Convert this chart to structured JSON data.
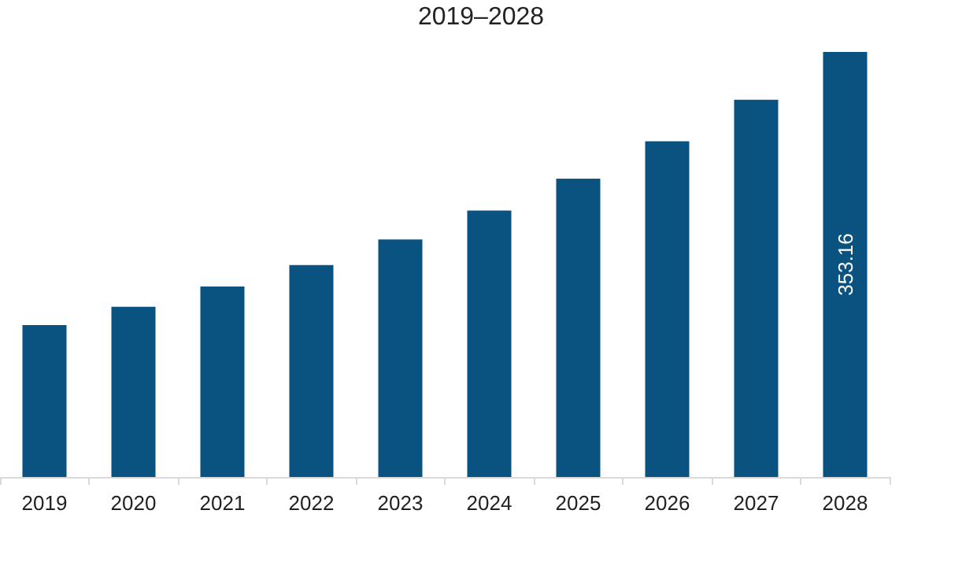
{
  "chart_data": {
    "type": "bar",
    "title": "2019–2028",
    "categories": [
      "2019",
      "2020",
      "2021",
      "2022",
      "2023",
      "2024",
      "2025",
      "2026",
      "2027",
      "2028"
    ],
    "values": [
      126.2,
      141.5,
      158.3,
      176.1,
      197.4,
      221.4,
      247.8,
      278.9,
      313.5,
      353.16
    ],
    "value_labels": [
      null,
      null,
      null,
      null,
      null,
      null,
      null,
      null,
      null,
      "353.16"
    ],
    "color": "#0a5280"
  }
}
